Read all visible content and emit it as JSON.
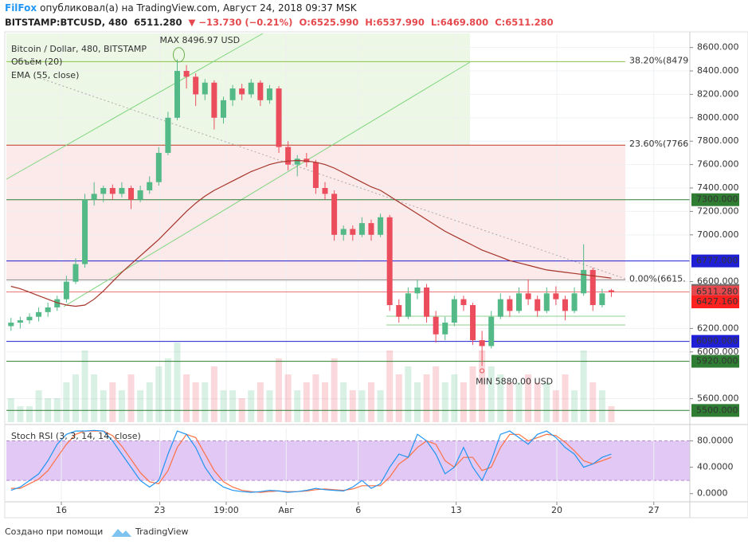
{
  "header": {
    "author": "FilFox",
    "published": "опубликовал(а) на TradingView.com, Август 24, 2018 09:37 MSK"
  },
  "chart_data": {
    "type": "candlestick",
    "title": "BITSTAMP:BTCUSD, 480",
    "name": "Bitcoin / Dollar, 480, BITSTAMP",
    "quote": {
      "last": "6511.280",
      "change": "▼ −13.730 (−0.21%)",
      "open": "O:6525.990",
      "high": "H:6537.990",
      "low": "L:6469.800",
      "close": "C:6511.280"
    },
    "up_color": "#53b987",
    "down_color": "#eb4d5c",
    "grid": true,
    "xlim": [
      -0.5,
      73.5
    ],
    "xticks": [
      {
        "value": 5.45,
        "label": "16"
      },
      {
        "value": 16.1,
        "label": "23"
      },
      {
        "value": 23.3,
        "label": "19:00"
      },
      {
        "value": 29.8,
        "label": "Авг"
      },
      {
        "value": 37.6,
        "label": "6"
      },
      {
        "value": 48.2,
        "label": "13"
      },
      {
        "value": 59.1,
        "label": "20"
      },
      {
        "value": 69.6,
        "label": "27"
      }
    ],
    "ylim": [
      5400,
      8720
    ],
    "yticks": [
      {
        "value": 8600,
        "label": "8600.000"
      },
      {
        "value": 8400,
        "label": "8400.000"
      },
      {
        "value": 8200,
        "label": "8200.000"
      },
      {
        "value": 8000,
        "label": "8000.000"
      },
      {
        "value": 7800,
        "label": "7800.000"
      },
      {
        "value": 7600,
        "label": "7600.000"
      },
      {
        "value": 7400,
        "label": "7400.000"
      },
      {
        "value": 7200,
        "label": "7200.000"
      },
      {
        "value": 7000,
        "label": "7000.000"
      },
      {
        "value": 6600,
        "label": "6600.000"
      },
      {
        "value": 6200,
        "label": "6200.000"
      },
      {
        "value": 6000,
        "label": "6000.000"
      },
      {
        "value": 5600,
        "label": "5600.000"
      }
    ],
    "candles": [
      [
        6220,
        6290,
        6180,
        6250
      ],
      [
        6250,
        6300,
        6200,
        6270
      ],
      [
        6270,
        6330,
        6240,
        6300
      ],
      [
        6300,
        6380,
        6260,
        6340
      ],
      [
        6340,
        6420,
        6300,
        6380
      ],
      [
        6380,
        6480,
        6350,
        6450
      ],
      [
        6450,
        6650,
        6420,
        6600
      ],
      [
        6600,
        6800,
        6580,
        6750
      ],
      [
        6750,
        7350,
        6720,
        7300
      ],
      [
        7300,
        7450,
        7250,
        7350
      ],
      [
        7350,
        7420,
        7280,
        7400
      ],
      [
        7400,
        7430,
        7300,
        7350
      ],
      [
        7350,
        7450,
        7320,
        7400
      ],
      [
        7400,
        7420,
        7220,
        7300
      ],
      [
        7300,
        7420,
        7280,
        7380
      ],
      [
        7380,
        7500,
        7350,
        7450
      ],
      [
        7450,
        7750,
        7420,
        7700
      ],
      [
        7700,
        8050,
        7680,
        8000
      ],
      [
        8000,
        8496.97,
        7980,
        8400
      ],
      [
        8400,
        8450,
        8250,
        8350
      ],
      [
        8350,
        8380,
        8100,
        8200
      ],
      [
        8200,
        8330,
        8150,
        8300
      ],
      [
        8300,
        8320,
        7900,
        8000
      ],
      [
        8000,
        8180,
        7950,
        8150
      ],
      [
        8150,
        8280,
        8100,
        8250
      ],
      [
        8250,
        8290,
        8150,
        8200
      ],
      [
        8200,
        8330,
        8170,
        8300
      ],
      [
        8300,
        8320,
        8100,
        8150
      ],
      [
        8150,
        8280,
        8120,
        8250
      ],
      [
        8250,
        8270,
        7700,
        7750
      ],
      [
        7750,
        7800,
        7550,
        7600
      ],
      [
        7600,
        7680,
        7500,
        7650
      ],
      [
        7650,
        7700,
        7580,
        7620
      ],
      [
        7620,
        7640,
        7350,
        7400
      ],
      [
        7400,
        7450,
        7300,
        7350
      ],
      [
        7350,
        7380,
        6950,
        7000
      ],
      [
        7000,
        7080,
        6950,
        7050
      ],
      [
        7050,
        7080,
        6950,
        7000
      ],
      [
        7000,
        7150,
        6980,
        7100
      ],
      [
        7100,
        7130,
        6950,
        7000
      ],
      [
        7000,
        7180,
        6980,
        7150
      ],
      [
        7150,
        7170,
        6350,
        6400
      ],
      [
        6400,
        6450,
        6250,
        6300
      ],
      [
        6300,
        6550,
        6280,
        6500
      ],
      [
        6500,
        6620,
        6450,
        6550
      ],
      [
        6550,
        6580,
        6250,
        6300
      ],
      [
        6300,
        6350,
        6080,
        6150
      ],
      [
        6150,
        6300,
        6100,
        6250
      ],
      [
        6250,
        6480,
        6220,
        6450
      ],
      [
        6450,
        6480,
        6350,
        6400
      ],
      [
        6400,
        6420,
        6060,
        6100
      ],
      [
        6100,
        6180,
        5880,
        6050
      ],
      [
        6050,
        6350,
        6030,
        6300
      ],
      [
        6300,
        6500,
        6280,
        6450
      ],
      [
        6450,
        6480,
        6300,
        6350
      ],
      [
        6350,
        6550,
        6330,
        6500
      ],
      [
        6500,
        6620,
        6400,
        6450
      ],
      [
        6450,
        6480,
        6300,
        6350
      ],
      [
        6350,
        6550,
        6330,
        6500
      ],
      [
        6500,
        6560,
        6400,
        6450
      ],
      [
        6450,
        6480,
        6270,
        6350
      ],
      [
        6350,
        6550,
        6330,
        6500
      ],
      [
        6500,
        6920,
        6480,
        6700
      ],
      [
        6700,
        6720,
        6350,
        6400
      ],
      [
        6400,
        6540,
        6380,
        6500
      ],
      [
        6525.99,
        6537.99,
        6469.8,
        6511.28
      ]
    ],
    "volume": {
      "name": "Объём (20)",
      "values": [
        3,
        2,
        2,
        4,
        3,
        3,
        5,
        6,
        9,
        6,
        4,
        5,
        4,
        6,
        4,
        5,
        7,
        8,
        10,
        6,
        5,
        5,
        7,
        4,
        4,
        3,
        4,
        5,
        4,
        8,
        6,
        4,
        5,
        6,
        5,
        8,
        5,
        4,
        4,
        5,
        4,
        9,
        6,
        7,
        5,
        6,
        7,
        5,
        6,
        5,
        7,
        9,
        7,
        6,
        5,
        5,
        6,
        5,
        5,
        4,
        6,
        4,
        9,
        5,
        4,
        2
      ]
    },
    "ema": {
      "name": "EMA (55, close)",
      "color": "#a5352a",
      "values": [
        6560,
        6540,
        6510,
        6480,
        6450,
        6420,
        6400,
        6390,
        6400,
        6450,
        6520,
        6600,
        6680,
        6750,
        6820,
        6890,
        6960,
        7040,
        7120,
        7200,
        7270,
        7330,
        7380,
        7420,
        7460,
        7500,
        7540,
        7570,
        7600,
        7620,
        7630,
        7635,
        7630,
        7620,
        7600,
        7570,
        7530,
        7490,
        7450,
        7410,
        7380,
        7330,
        7280,
        7230,
        7180,
        7130,
        7080,
        7030,
        6990,
        6950,
        6910,
        6870,
        6840,
        6810,
        6780,
        6760,
        6740,
        6720,
        6700,
        6690,
        6680,
        6670,
        6660,
        6650,
        6640,
        6630
      ]
    },
    "levels": [
      {
        "value": 7300,
        "label": "7300.000",
        "color": "#2e7d32"
      },
      {
        "value": 6777,
        "label": "6777.000",
        "color": "#1f1fd6"
      },
      {
        "value": 6090,
        "label": "6090.000",
        "color": "#1f1fd6"
      },
      {
        "value": 5920,
        "label": "5920.000",
        "color": "#2e7d32"
      },
      {
        "value": 5500,
        "label": "5500.000",
        "color": "#2e7d32"
      }
    ],
    "price_labels": [
      {
        "value": 6525.01,
        "label": "6525.010",
        "color": "#6b6b6b"
      },
      {
        "value": 6511.28,
        "label": "6511.280",
        "color": "#e5494d"
      },
      {
        "value": 6427.16,
        "label": "6427.160",
        "color": "#ff2020"
      }
    ],
    "fib": [
      {
        "value": 8479,
        "label": "38.20%(8479",
        "color": "#8bc34a"
      },
      {
        "value": 7766,
        "label": "23.60%(7766",
        "color": "#c0392b"
      },
      {
        "value": 6615,
        "label": "0.00%(6615.",
        "color": "#888888"
      }
    ],
    "annotations": {
      "max": "MAX 8496.97 USD",
      "min": "MIN 5880.00 USD"
    },
    "stoch": {
      "name": "Stoch RSI (3, 3, 14, 14, close)",
      "ylim": [
        -10,
        100
      ],
      "yticks": [
        {
          "value": 80,
          "label": "80.0000"
        },
        {
          "value": 40,
          "label": "40.0000"
        },
        {
          "value": 0,
          "label": "0.0000"
        }
      ],
      "band": [
        20,
        80
      ],
      "k": {
        "color": "#2196f3",
        "values": [
          5,
          10,
          20,
          30,
          50,
          75,
          90,
          95,
          95,
          96,
          95,
          80,
          60,
          40,
          20,
          10,
          20,
          60,
          95,
          90,
          70,
          40,
          20,
          10,
          5,
          3,
          2,
          3,
          5,
          4,
          2,
          3,
          5,
          8,
          6,
          5,
          4,
          10,
          20,
          8,
          15,
          40,
          60,
          55,
          90,
          80,
          60,
          30,
          40,
          70,
          40,
          20,
          50,
          90,
          95,
          85,
          75,
          90,
          95,
          85,
          70,
          60,
          40,
          45,
          55,
          60
        ]
      },
      "d": {
        "color": "#ff7043",
        "values": [
          8,
          8,
          15,
          22,
          35,
          55,
          75,
          90,
          95,
          95,
          95,
          88,
          72,
          52,
          32,
          18,
          15,
          35,
          70,
          90,
          85,
          60,
          35,
          18,
          10,
          5,
          3,
          2,
          3,
          4,
          3,
          3,
          4,
          6,
          7,
          6,
          5,
          7,
          12,
          12,
          12,
          25,
          45,
          55,
          70,
          80,
          75,
          50,
          40,
          55,
          55,
          35,
          40,
          70,
          90,
          90,
          80,
          85,
          90,
          88,
          78,
          65,
          50,
          45,
          50,
          55
        ]
      }
    }
  },
  "footer": {
    "text": "Создано при помощи",
    "brand": "TradingView"
  }
}
